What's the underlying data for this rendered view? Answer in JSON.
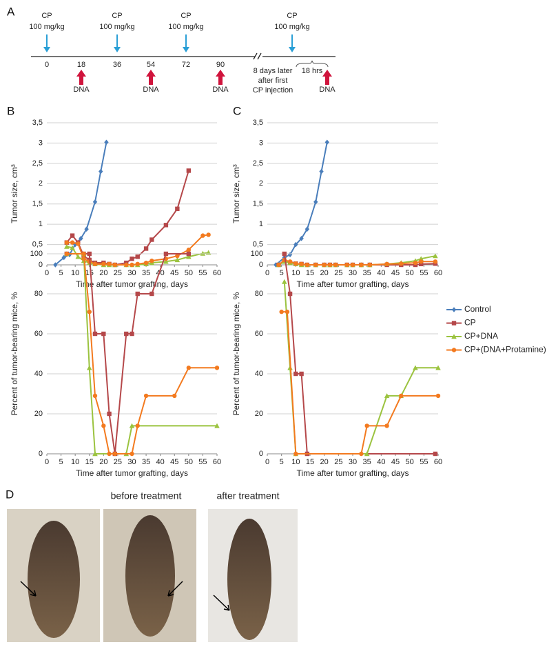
{
  "panel_labels": [
    "A",
    "B",
    "C",
    "D"
  ],
  "timeline": {
    "ticks": [
      "0",
      "18",
      "36",
      "54",
      "72",
      "90"
    ],
    "cp_injections": [
      {
        "drug": "CP",
        "dose": "100 mg/kg"
      },
      {
        "drug": "CP",
        "dose": "100 mg/kg"
      },
      {
        "drug": "CP",
        "dose": "100 mg/kg"
      },
      {
        "drug": "CP",
        "dose": "100 mg/kg"
      }
    ],
    "dna_injections": [
      "DNA",
      "DNA",
      "DNA",
      "DNA"
    ],
    "break_label": [
      "8 days later",
      "after first",
      "CP injection"
    ],
    "interval_label": "18 hrs"
  },
  "legend": [
    {
      "name": "Control",
      "color": "#4a7ebb",
      "marker": "diamond"
    },
    {
      "name": "CP",
      "color": "#b5484a",
      "marker": "square"
    },
    {
      "name": "CP+DNA",
      "color": "#9bc33f",
      "marker": "triangle"
    },
    {
      "name": "CP+(DNA+Protamine)",
      "color": "#f37a1f",
      "marker": "circle"
    }
  ],
  "chart_data": [
    {
      "type": "line",
      "ylabel": "Tumor size, cm³",
      "xlabel": "Time after tumor grafting, days",
      "xlim": [
        0,
        60
      ],
      "xticks": [
        0,
        5,
        10,
        15,
        20,
        25,
        30,
        35,
        40,
        45,
        50,
        55,
        60
      ],
      "ylim": [
        0,
        3.5
      ],
      "yticks": [
        0,
        {
          "value": 0.5,
          "label": "0,5"
        },
        1,
        {
          "value": 1.5,
          "label": "1,5"
        },
        2,
        {
          "value": 2.5,
          "label": "2,5"
        },
        3,
        {
          "value": 3.5,
          "label": "3,5"
        }
      ],
      "grid": true,
      "series": [
        {
          "x": [
            3,
            6,
            8,
            10,
            12,
            14,
            17,
            19,
            21
          ],
          "values": [
            0,
            0.18,
            0.25,
            0.5,
            0.65,
            0.88,
            1.55,
            2.3,
            3.02
          ]
        },
        {
          "x": [
            7,
            9,
            11,
            13,
            15,
            17,
            20,
            22,
            24,
            28,
            30,
            32,
            35,
            37,
            42,
            46,
            50
          ],
          "values": [
            0.55,
            0.72,
            0.55,
            0.22,
            0.12,
            0.05,
            0.05,
            0.02,
            0,
            0.05,
            0.15,
            0.2,
            0.4,
            0.62,
            0.98,
            1.38,
            2.32
          ]
        },
        {
          "x": [
            7,
            9,
            11,
            13,
            15,
            17,
            20,
            22,
            24,
            28,
            30,
            32,
            35,
            37,
            42,
            46,
            50,
            55,
            57
          ],
          "values": [
            0.45,
            0.42,
            0.2,
            0.1,
            0.05,
            0.02,
            0,
            0,
            0,
            0,
            0,
            0,
            0.02,
            0.05,
            0.08,
            0.12,
            0.2,
            0.28,
            0.3
          ]
        },
        {
          "x": [
            7,
            9,
            11,
            13,
            15,
            17,
            20,
            22,
            24,
            28,
            30,
            32,
            35,
            37,
            42,
            46,
            50,
            55,
            57
          ],
          "values": [
            0.55,
            0.55,
            0.52,
            0.15,
            0.08,
            0.02,
            0.02,
            0.02,
            0,
            0,
            0,
            0.02,
            0.05,
            0.1,
            0.15,
            0.22,
            0.37,
            0.72,
            0.74
          ]
        }
      ]
    },
    {
      "type": "line",
      "ylabel": "Tumor size, cm³",
      "xlabel": "Time after tumor grafting, days",
      "xlim": [
        0,
        60
      ],
      "xticks": [
        0,
        5,
        10,
        15,
        20,
        25,
        30,
        35,
        40,
        45,
        50,
        55,
        60
      ],
      "ylim": [
        0,
        3.5
      ],
      "yticks": [
        0,
        {
          "value": 0.5,
          "label": "0,5"
        },
        1,
        {
          "value": 1.5,
          "label": "1,5"
        },
        2,
        {
          "value": 2.5,
          "label": "2,5"
        },
        3,
        {
          "value": 3.5,
          "label": "3,5"
        }
      ],
      "grid": true,
      "series": [
        {
          "x": [
            3,
            6,
            8,
            10,
            12,
            14,
            17,
            19,
            21
          ],
          "values": [
            0,
            0.18,
            0.25,
            0.5,
            0.65,
            0.88,
            1.55,
            2.3,
            3.02
          ]
        },
        {
          "x": [
            4,
            6,
            8,
            10,
            12,
            14,
            17,
            20,
            22,
            24,
            28,
            30,
            33,
            36,
            42,
            47,
            52,
            54,
            59
          ],
          "values": [
            0,
            0.1,
            0.05,
            0.03,
            0.02,
            0,
            0,
            0,
            0,
            0,
            0,
            0,
            0,
            0,
            0,
            0,
            0,
            0.02,
            0.03
          ]
        },
        {
          "x": [
            4,
            6,
            8,
            10,
            12,
            14,
            17,
            20,
            22,
            24,
            28,
            30,
            33,
            36,
            42,
            47,
            52,
            54,
            59
          ],
          "values": [
            0,
            0.08,
            0.05,
            0.02,
            0,
            0,
            0,
            0,
            0,
            0,
            0,
            0,
            0,
            0,
            0.02,
            0.05,
            0.1,
            0.15,
            0.22
          ]
        },
        {
          "x": [
            4,
            6,
            8,
            10,
            12,
            14,
            17,
            20,
            22,
            24,
            28,
            30,
            33,
            36,
            42,
            47,
            52,
            54,
            59
          ],
          "values": [
            0,
            0.12,
            0.08,
            0.03,
            0.02,
            0,
            0,
            0,
            0,
            0,
            0,
            0,
            0,
            0,
            0.02,
            0.03,
            0.05,
            0.08,
            0.08
          ]
        }
      ]
    },
    {
      "type": "line",
      "ylabel": "Percent of tumor-bearing mice, %",
      "xlabel": "Time after tumor grafting, days",
      "xlim": [
        0,
        60
      ],
      "xticks": [
        0,
        5,
        10,
        15,
        20,
        25,
        30,
        35,
        40,
        45,
        50,
        55,
        60
      ],
      "ylim": [
        0,
        100
      ],
      "yticks": [
        0,
        20,
        40,
        60,
        80,
        100
      ],
      "grid": true,
      "series": [
        {
          "x": [],
          "values": []
        },
        {
          "x": [
            7,
            13,
            15,
            17,
            20,
            22,
            24,
            28,
            30,
            32,
            37,
            42,
            50
          ],
          "values": [
            100,
            100,
            100,
            60,
            60,
            20,
            0,
            60,
            60,
            80,
            80,
            100,
            100
          ]
        },
        {
          "x": [
            7,
            13,
            15,
            17,
            28,
            30,
            60
          ],
          "values": [
            100,
            100,
            43,
            0,
            0,
            14,
            14
          ]
        },
        {
          "x": [
            7,
            13,
            15,
            17,
            20,
            22,
            24,
            30,
            32,
            35,
            45,
            50,
            60
          ],
          "values": [
            100,
            100,
            71,
            29,
            14,
            0,
            0,
            0,
            14,
            29,
            29,
            43,
            43
          ]
        }
      ]
    },
    {
      "type": "line",
      "ylabel": "Percent of tumor-bearing mice, %",
      "xlabel": "Time after tumor grafting, days",
      "xlim": [
        0,
        60
      ],
      "xticks": [
        0,
        5,
        10,
        15,
        20,
        25,
        30,
        35,
        40,
        45,
        50,
        55,
        60
      ],
      "ylim": [
        0,
        100
      ],
      "yticks": [
        0,
        20,
        40,
        60,
        80,
        100
      ],
      "grid": true,
      "series": [
        {
          "x": [],
          "values": []
        },
        {
          "x": [
            6,
            8,
            10,
            12,
            14,
            59
          ],
          "values": [
            100,
            80,
            40,
            40,
            0,
            0
          ]
        },
        {
          "x": [
            6,
            8,
            10,
            35,
            42,
            47,
            52,
            60
          ],
          "values": [
            86,
            43,
            0,
            0,
            29,
            29,
            43,
            43
          ]
        },
        {
          "x": [
            5,
            7,
            10,
            33,
            35,
            42,
            47,
            60
          ],
          "values": [
            71,
            71,
            0,
            0,
            14,
            14,
            29,
            29
          ]
        }
      ]
    }
  ],
  "photos": {
    "before_label": "before treatment",
    "after_label": "after treatment"
  }
}
